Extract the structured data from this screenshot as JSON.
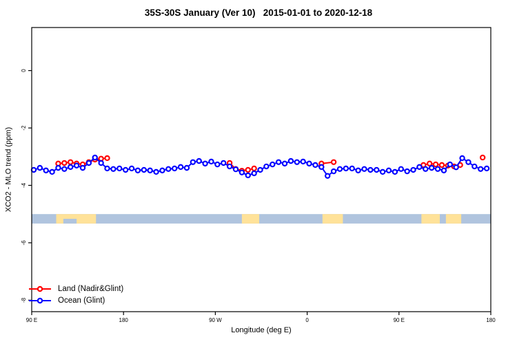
{
  "title": "35S-30S January (Ver 10)   2015-01-01 to 2020-12-18",
  "chart_data": {
    "type": "line",
    "title": "35S-30S January (Ver 10)   2015-01-01 to 2020-12-18",
    "xlabel": "Longitude (deg E)",
    "ylabel": "XCO2 - MLO trend (ppm)",
    "xlim": [
      90,
      540
    ],
    "ylim": [
      -8.4,
      1.5
    ],
    "grid": false,
    "legend_position": "bottom-left",
    "marker": "open-circle",
    "x_ticks": [
      {
        "pos": 90,
        "label": "90 E"
      },
      {
        "pos": 180,
        "label": "180"
      },
      {
        "pos": 270,
        "label": "90 W"
      },
      {
        "pos": 360,
        "label": "0"
      },
      {
        "pos": 450,
        "label": "90 E"
      },
      {
        "pos": 540,
        "label": "180"
      }
    ],
    "y_ticks": [
      {
        "pos": 0,
        "label": "0"
      },
      {
        "pos": -2,
        "label": "-2"
      },
      {
        "pos": -4,
        "label": "-4"
      },
      {
        "pos": -6,
        "label": "-6"
      },
      {
        "pos": -8,
        "label": "-8"
      }
    ],
    "series": [
      {
        "name": "Land (Nadir&Glint)",
        "color": "#ff0000",
        "marker": "open-circle",
        "segments": [
          [
            [
              116,
              -3.24
            ],
            [
              122,
              -3.22
            ],
            [
              128,
              -3.19
            ],
            [
              134,
              -3.24
            ],
            [
              140,
              -3.27
            ],
            [
              146,
              -3.19
            ],
            [
              152,
              -3.1
            ],
            [
              158,
              -3.07
            ],
            [
              164,
              -3.05
            ]
          ],
          [
            [
              284,
              -3.22
            ],
            [
              290,
              -3.43
            ],
            [
              296,
              -3.49
            ],
            [
              302,
              -3.46
            ],
            [
              308,
              -3.41
            ]
          ],
          [
            [
              374,
              -3.24
            ],
            [
              386,
              -3.19
            ]
          ],
          [
            [
              474,
              -3.29
            ],
            [
              480,
              -3.24
            ],
            [
              486,
              -3.27
            ],
            [
              492,
              -3.29
            ],
            [
              498,
              -3.31
            ],
            [
              504,
              -3.34
            ],
            [
              510,
              -3.29
            ]
          ],
          [
            [
              532,
              -3.03
            ]
          ]
        ]
      },
      {
        "name": "Ocean (Glint)",
        "color": "#0000ff",
        "marker": "open-circle",
        "segments": [
          [
            [
              92,
              -3.46
            ],
            [
              98,
              -3.39
            ],
            [
              104,
              -3.48
            ],
            [
              110,
              -3.53
            ],
            [
              116,
              -3.39
            ],
            [
              122,
              -3.43
            ],
            [
              128,
              -3.36
            ],
            [
              134,
              -3.31
            ],
            [
              140,
              -3.39
            ],
            [
              146,
              -3.22
            ],
            [
              152,
              -3.03
            ],
            [
              158,
              -3.22
            ],
            [
              164,
              -3.41
            ],
            [
              170,
              -3.43
            ],
            [
              176,
              -3.41
            ],
            [
              182,
              -3.46
            ],
            [
              188,
              -3.41
            ],
            [
              194,
              -3.48
            ],
            [
              200,
              -3.46
            ],
            [
              206,
              -3.48
            ],
            [
              212,
              -3.53
            ],
            [
              218,
              -3.48
            ],
            [
              224,
              -3.43
            ],
            [
              230,
              -3.41
            ],
            [
              236,
              -3.36
            ],
            [
              242,
              -3.39
            ],
            [
              248,
              -3.19
            ],
            [
              254,
              -3.15
            ],
            [
              260,
              -3.24
            ],
            [
              266,
              -3.17
            ],
            [
              272,
              -3.27
            ],
            [
              278,
              -3.22
            ],
            [
              284,
              -3.34
            ],
            [
              290,
              -3.44
            ],
            [
              296,
              -3.55
            ],
            [
              302,
              -3.65
            ],
            [
              308,
              -3.58
            ],
            [
              314,
              -3.46
            ],
            [
              320,
              -3.34
            ],
            [
              326,
              -3.27
            ],
            [
              332,
              -3.19
            ],
            [
              338,
              -3.24
            ],
            [
              344,
              -3.15
            ],
            [
              350,
              -3.19
            ],
            [
              356,
              -3.17
            ],
            [
              362,
              -3.24
            ],
            [
              368,
              -3.29
            ],
            [
              374,
              -3.36
            ],
            [
              380,
              -3.67
            ],
            [
              386,
              -3.51
            ],
            [
              392,
              -3.43
            ],
            [
              398,
              -3.41
            ],
            [
              404,
              -3.41
            ],
            [
              410,
              -3.48
            ],
            [
              416,
              -3.43
            ],
            [
              422,
              -3.46
            ],
            [
              428,
              -3.46
            ],
            [
              434,
              -3.53
            ],
            [
              440,
              -3.48
            ],
            [
              446,
              -3.53
            ],
            [
              452,
              -3.43
            ],
            [
              458,
              -3.51
            ],
            [
              464,
              -3.46
            ],
            [
              470,
              -3.36
            ],
            [
              476,
              -3.43
            ],
            [
              482,
              -3.39
            ],
            [
              488,
              -3.43
            ],
            [
              494,
              -3.48
            ],
            [
              500,
              -3.27
            ],
            [
              506,
              -3.37
            ],
            [
              512,
              -3.05
            ],
            [
              518,
              -3.19
            ],
            [
              524,
              -3.34
            ],
            [
              530,
              -3.43
            ],
            [
              536,
              -3.41
            ]
          ]
        ]
      }
    ],
    "map_band": {
      "meaning": "land(yellow)/ocean(blue) strip for the 35S-30S latitude band",
      "ocean_color": "#b0c4de",
      "land_color": "#ffe299",
      "v_top": -5.0,
      "v_bottom": -5.33,
      "land_segments": [
        [
          114,
          153
        ],
        [
          296,
          313
        ],
        [
          375,
          395
        ],
        [
          472,
          490
        ],
        [
          496,
          511
        ]
      ],
      "ocean_notches_bottom_half": [
        [
          121,
          134
        ]
      ]
    }
  },
  "legend": {
    "items": [
      {
        "label": "Land (Nadir&Glint)",
        "color": "#ff0000"
      },
      {
        "label": "Ocean (Glint)",
        "color": "#0000ff"
      }
    ]
  }
}
